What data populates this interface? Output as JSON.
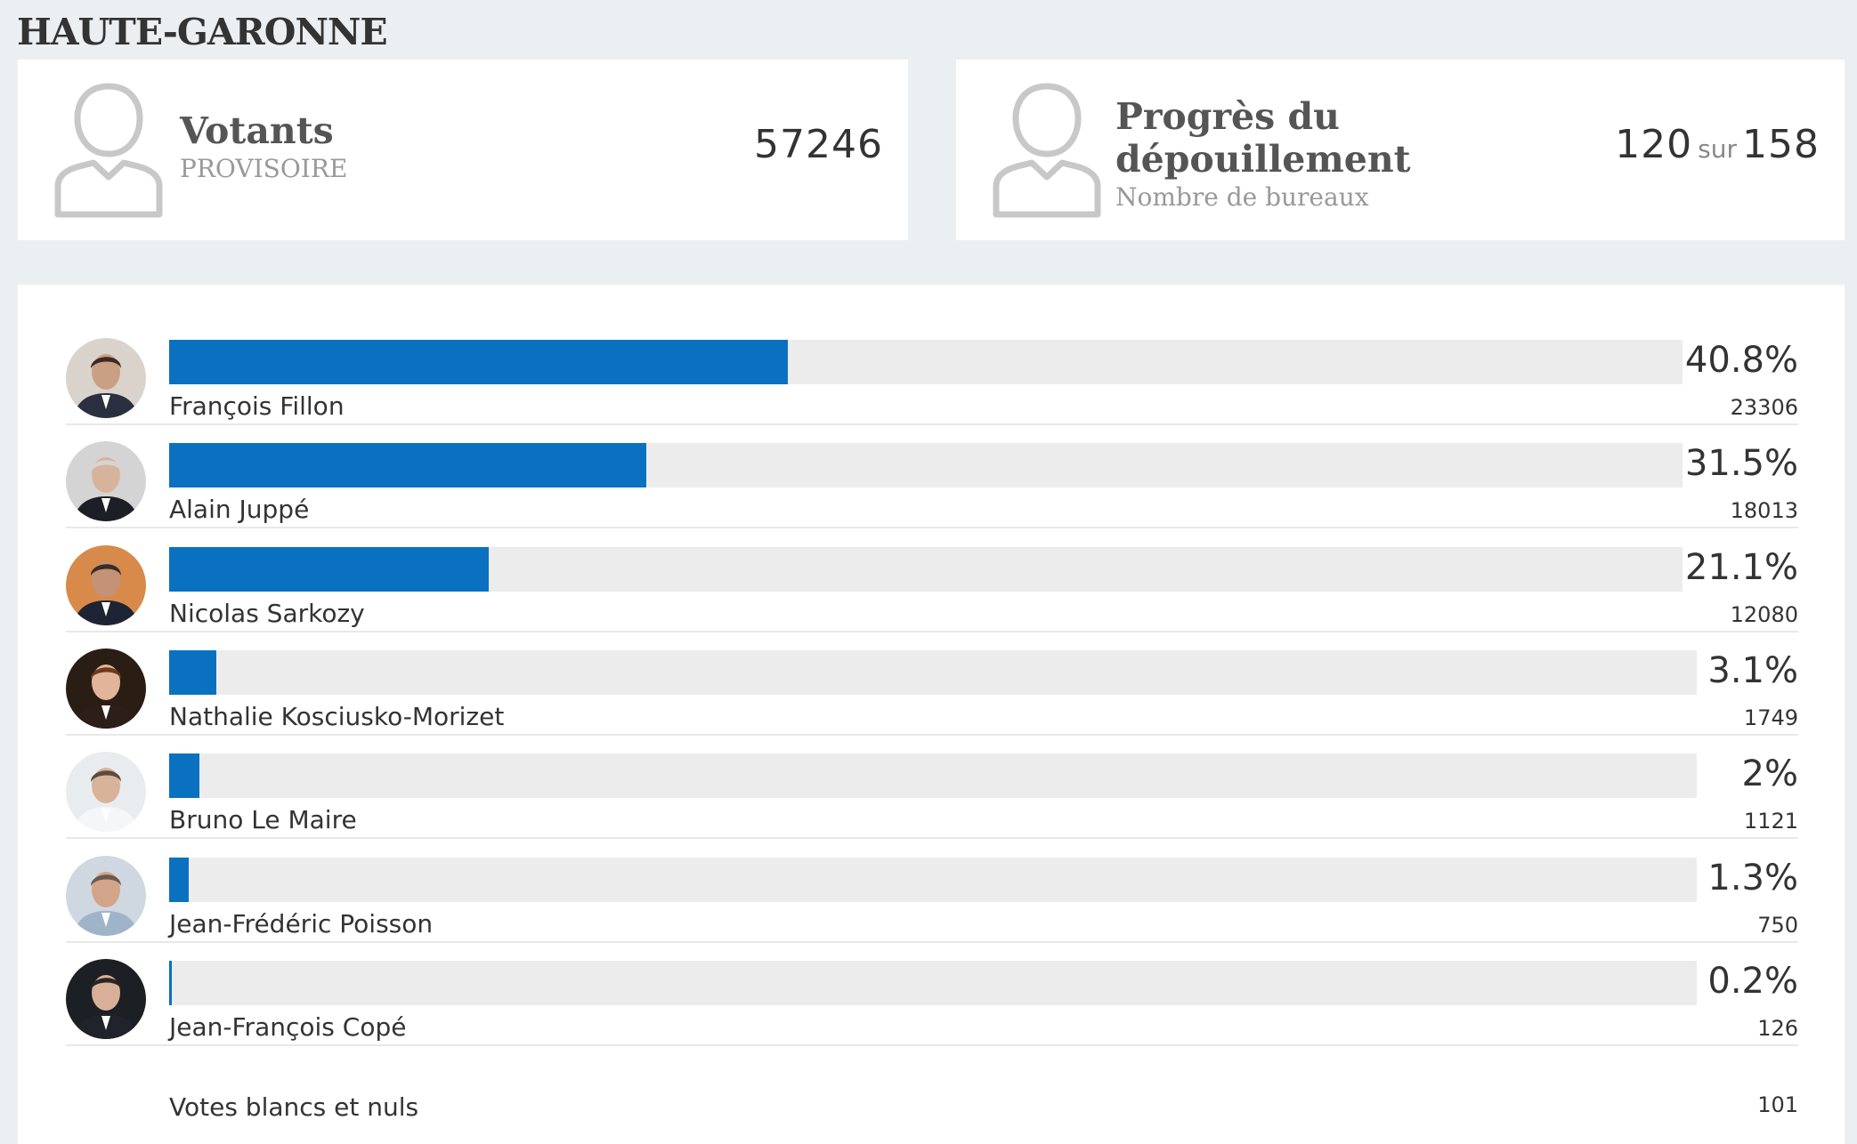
{
  "region": "HAUTE-GARONNE",
  "voters_card": {
    "title": "Votants",
    "subtitle": "PROVISOIRE",
    "value": "57246",
    "icon": "person-icon"
  },
  "progress_card": {
    "title": "Progrès du dépouillement",
    "subtitle": "Nombre de bureaux",
    "counted": "120",
    "separator": "sur",
    "total": "158",
    "icon": "person-icon"
  },
  "colors": {
    "bar": "#0a71c0",
    "track": "#ececec",
    "background": "#eceff2"
  },
  "candidates": [
    {
      "name": "François Fillon",
      "percent_label": "40.8%",
      "percent": 40.8,
      "votes": "23306",
      "avatar": {
        "bg": "#d9d3cc",
        "skin": "#c9a083",
        "hair": "#3a2a22",
        "suit": "#2b3040"
      }
    },
    {
      "name": "Alain Juppé",
      "percent_label": "31.5%",
      "percent": 31.5,
      "votes": "18013",
      "avatar": {
        "bg": "#d4d4d4",
        "skin": "#d8b39c",
        "hair": "#d4d4d4",
        "suit": "#1d1f26"
      }
    },
    {
      "name": "Nicolas Sarkozy",
      "percent_label": "21.1%",
      "percent": 21.1,
      "votes": "12080",
      "avatar": {
        "bg": "#d88a4a",
        "skin": "#c39277",
        "hair": "#3a2d26",
        "suit": "#1e2433"
      }
    },
    {
      "name": "Nathalie Kosciusko-Morizet",
      "percent_label": "3.1%",
      "percent": 3.1,
      "votes": "1749",
      "avatar": {
        "bg": "#2a1d14",
        "skin": "#e2b59a",
        "hair": "#6b3b1c",
        "suit": "#2c1e18"
      }
    },
    {
      "name": "Bruno Le Maire",
      "percent_label": "2%",
      "percent": 2.0,
      "votes": "1121",
      "avatar": {
        "bg": "#e8ecef",
        "skin": "#d9b29a",
        "hair": "#5a4a40",
        "suit": "#f4f6f8"
      }
    },
    {
      "name": "Jean-Frédéric Poisson",
      "percent_label": "1.3%",
      "percent": 1.3,
      "votes": "750",
      "avatar": {
        "bg": "#cfd8e0",
        "skin": "#d2a48a",
        "hair": "#6a5a4d",
        "suit": "#9fb3c9"
      }
    },
    {
      "name": "Jean-François Copé",
      "percent_label": "0.2%",
      "percent": 0.2,
      "votes": "126",
      "avatar": {
        "bg": "#1c1f24",
        "skin": "#d8b099",
        "hair": "#2b2622",
        "suit": "#20232a"
      }
    }
  ],
  "blank_votes": {
    "label": "Votes blancs et nuls",
    "value": "101"
  }
}
